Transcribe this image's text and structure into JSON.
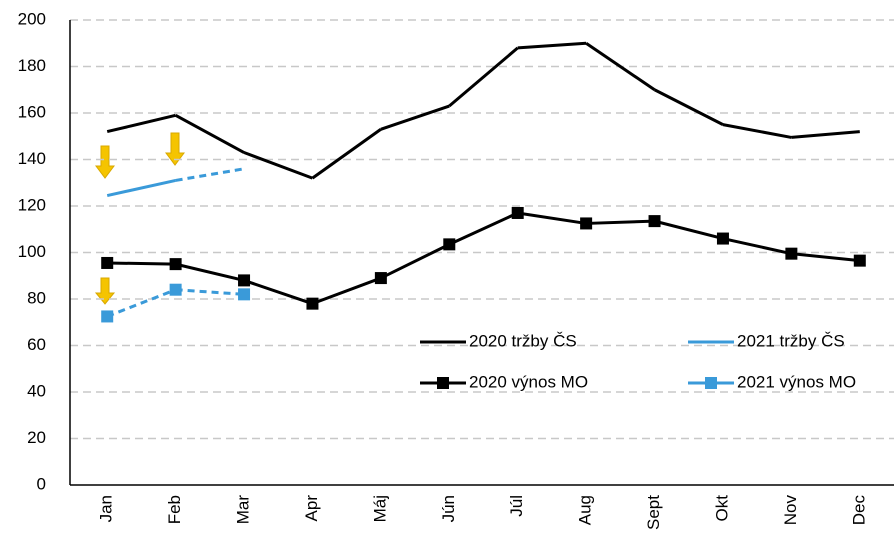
{
  "chart_data": {
    "type": "line",
    "categories": [
      "Jan",
      "Feb",
      "Mar",
      "Apr",
      "Máj",
      "Jún",
      "Júl",
      "Aug",
      "Sept",
      "Okt",
      "Nov",
      "Dec"
    ],
    "series": [
      {
        "name": "2020 tržby ČS",
        "color": "#000000",
        "marker": "none",
        "values": [
          152,
          159,
          143,
          132,
          153,
          163,
          188,
          190,
          170,
          155,
          149.5,
          152
        ]
      },
      {
        "name": "2021 tržby ČS",
        "color": "#3a9ad9",
        "marker": "none",
        "dashed_from": "Feb",
        "values": [
          124.5,
          131,
          136,
          null,
          null,
          null,
          null,
          null,
          null,
          null,
          null,
          null
        ]
      },
      {
        "name": "2020 výnos MO",
        "color": "#000000",
        "marker": "square",
        "values": [
          95.5,
          95,
          88,
          78,
          89,
          103.5,
          117,
          112.5,
          113.5,
          106,
          99.5,
          96.5
        ]
      },
      {
        "name": "2021 výnos MO",
        "color": "#3a9ad9",
        "marker": "square",
        "dashed_from": "Jan",
        "values": [
          72.5,
          84,
          82,
          null,
          null,
          null,
          null,
          null,
          null,
          null,
          null,
          null
        ]
      }
    ],
    "ylim": [
      0,
      200
    ],
    "yticks": [
      0,
      20,
      40,
      60,
      80,
      100,
      120,
      140,
      160,
      180,
      200
    ],
    "grid": true
  }
}
